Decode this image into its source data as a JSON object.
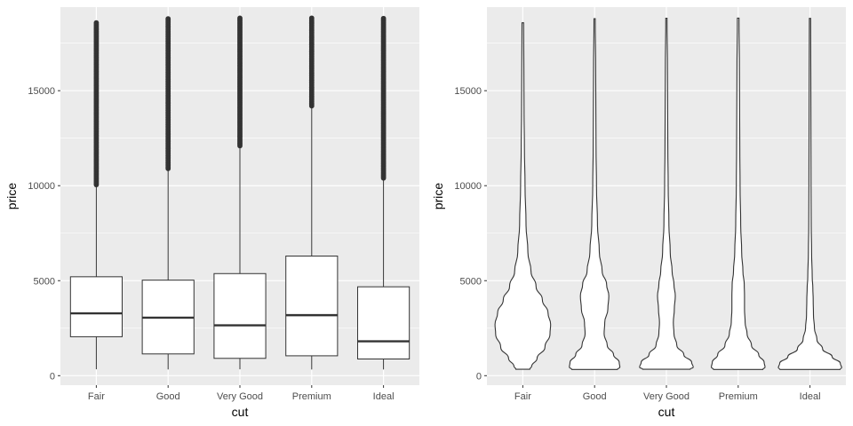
{
  "chart_data": [
    {
      "type": "box",
      "xlabel": "cut",
      "ylabel": "price",
      "categories": [
        "Fair",
        "Good",
        "Very Good",
        "Premium",
        "Ideal"
      ],
      "ylim": [
        -500,
        19400
      ],
      "yticks": [
        0,
        5000,
        10000,
        15000
      ],
      "grid": true,
      "boxes": [
        {
          "min": 337,
          "q1": 2050,
          "median": 3282,
          "q3": 5206,
          "whisker_high": 9950,
          "outliers_from": 10050,
          "outliers_to": 18574
        },
        {
          "min": 327,
          "q1": 1145,
          "median": 3051,
          "q3": 5028,
          "whisker_high": 10845,
          "outliers_from": 10900,
          "outliers_to": 18788
        },
        {
          "min": 336,
          "q1": 912,
          "median": 2648,
          "q3": 5373,
          "whisker_high": 12060,
          "outliers_from": 12100,
          "outliers_to": 18818
        },
        {
          "min": 326,
          "q1": 1046,
          "median": 3185,
          "q3": 6296,
          "whisker_high": 14170,
          "outliers_from": 14200,
          "outliers_to": 18823
        },
        {
          "min": 326,
          "q1": 878,
          "median": 1810,
          "q3": 4678,
          "whisker_high": 10375,
          "outliers_from": 10400,
          "outliers_to": 18806
        }
      ]
    },
    {
      "type": "violin",
      "xlabel": "cut",
      "ylabel": "price",
      "categories": [
        "Fair",
        "Good",
        "Very Good",
        "Premium",
        "Ideal"
      ],
      "ylim": [
        -500,
        19400
      ],
      "yticks": [
        0,
        5000,
        10000,
        15000
      ],
      "grid": true,
      "violins": [
        {
          "range": [
            337,
            18574
          ],
          "profile": [
            [
              337,
              0.22
            ],
            [
              500,
              0.28
            ],
            [
              900,
              0.45
            ],
            [
              1500,
              0.7
            ],
            [
              2200,
              0.86
            ],
            [
              2700,
              0.88
            ],
            [
              3300,
              0.8
            ],
            [
              4000,
              0.62
            ],
            [
              4700,
              0.42
            ],
            [
              5500,
              0.26
            ],
            [
              6500,
              0.16
            ],
            [
              8000,
              0.1
            ],
            [
              10000,
              0.07
            ],
            [
              12000,
              0.05
            ],
            [
              14000,
              0.04
            ],
            [
              16000,
              0.035
            ],
            [
              18574,
              0.025
            ]
          ]
        },
        {
          "range": [
            327,
            18788
          ],
          "profile": [
            [
              327,
              0.72
            ],
            [
              450,
              0.8
            ],
            [
              700,
              0.78
            ],
            [
              1100,
              0.6
            ],
            [
              1600,
              0.4
            ],
            [
              2200,
              0.3
            ],
            [
              2800,
              0.32
            ],
            [
              3500,
              0.42
            ],
            [
              4200,
              0.45
            ],
            [
              4800,
              0.38
            ],
            [
              5500,
              0.24
            ],
            [
              6500,
              0.15
            ],
            [
              8000,
              0.09
            ],
            [
              10000,
              0.06
            ],
            [
              12000,
              0.045
            ],
            [
              14000,
              0.04
            ],
            [
              16000,
              0.035
            ],
            [
              18788,
              0.02
            ]
          ]
        },
        {
          "range": [
            336,
            18818
          ],
          "profile": [
            [
              336,
              0.75
            ],
            [
              450,
              0.85
            ],
            [
              700,
              0.8
            ],
            [
              1100,
              0.55
            ],
            [
              1600,
              0.33
            ],
            [
              2200,
              0.24
            ],
            [
              2800,
              0.22
            ],
            [
              3500,
              0.25
            ],
            [
              4200,
              0.28
            ],
            [
              4800,
              0.24
            ],
            [
              5500,
              0.18
            ],
            [
              6500,
              0.12
            ],
            [
              8000,
              0.08
            ],
            [
              10000,
              0.055
            ],
            [
              12000,
              0.045
            ],
            [
              14000,
              0.04
            ],
            [
              16000,
              0.035
            ],
            [
              18818,
              0.02
            ]
          ]
        },
        {
          "range": [
            326,
            18823
          ],
          "profile": [
            [
              326,
              0.78
            ],
            [
              450,
              0.85
            ],
            [
              700,
              0.82
            ],
            [
              1100,
              0.65
            ],
            [
              1600,
              0.42
            ],
            [
              2200,
              0.28
            ],
            [
              2800,
              0.22
            ],
            [
              3500,
              0.2
            ],
            [
              4200,
              0.2
            ],
            [
              4800,
              0.19
            ],
            [
              5500,
              0.15
            ],
            [
              6500,
              0.11
            ],
            [
              8000,
              0.08
            ],
            [
              10000,
              0.06
            ],
            [
              12000,
              0.05
            ],
            [
              14000,
              0.045
            ],
            [
              16000,
              0.04
            ],
            [
              18823,
              0.025
            ]
          ]
        },
        {
          "range": [
            326,
            18806
          ],
          "profile": [
            [
              326,
              0.95
            ],
            [
              420,
              1.0
            ],
            [
              650,
              0.96
            ],
            [
              1000,
              0.7
            ],
            [
              1400,
              0.4
            ],
            [
              1900,
              0.22
            ],
            [
              2500,
              0.14
            ],
            [
              3200,
              0.11
            ],
            [
              4000,
              0.1
            ],
            [
              4600,
              0.09
            ],
            [
              5200,
              0.07
            ],
            [
              6500,
              0.05
            ],
            [
              8000,
              0.04
            ],
            [
              10000,
              0.035
            ],
            [
              12000,
              0.03
            ],
            [
              14000,
              0.028
            ],
            [
              16000,
              0.025
            ],
            [
              18806,
              0.02
            ]
          ]
        }
      ]
    }
  ]
}
